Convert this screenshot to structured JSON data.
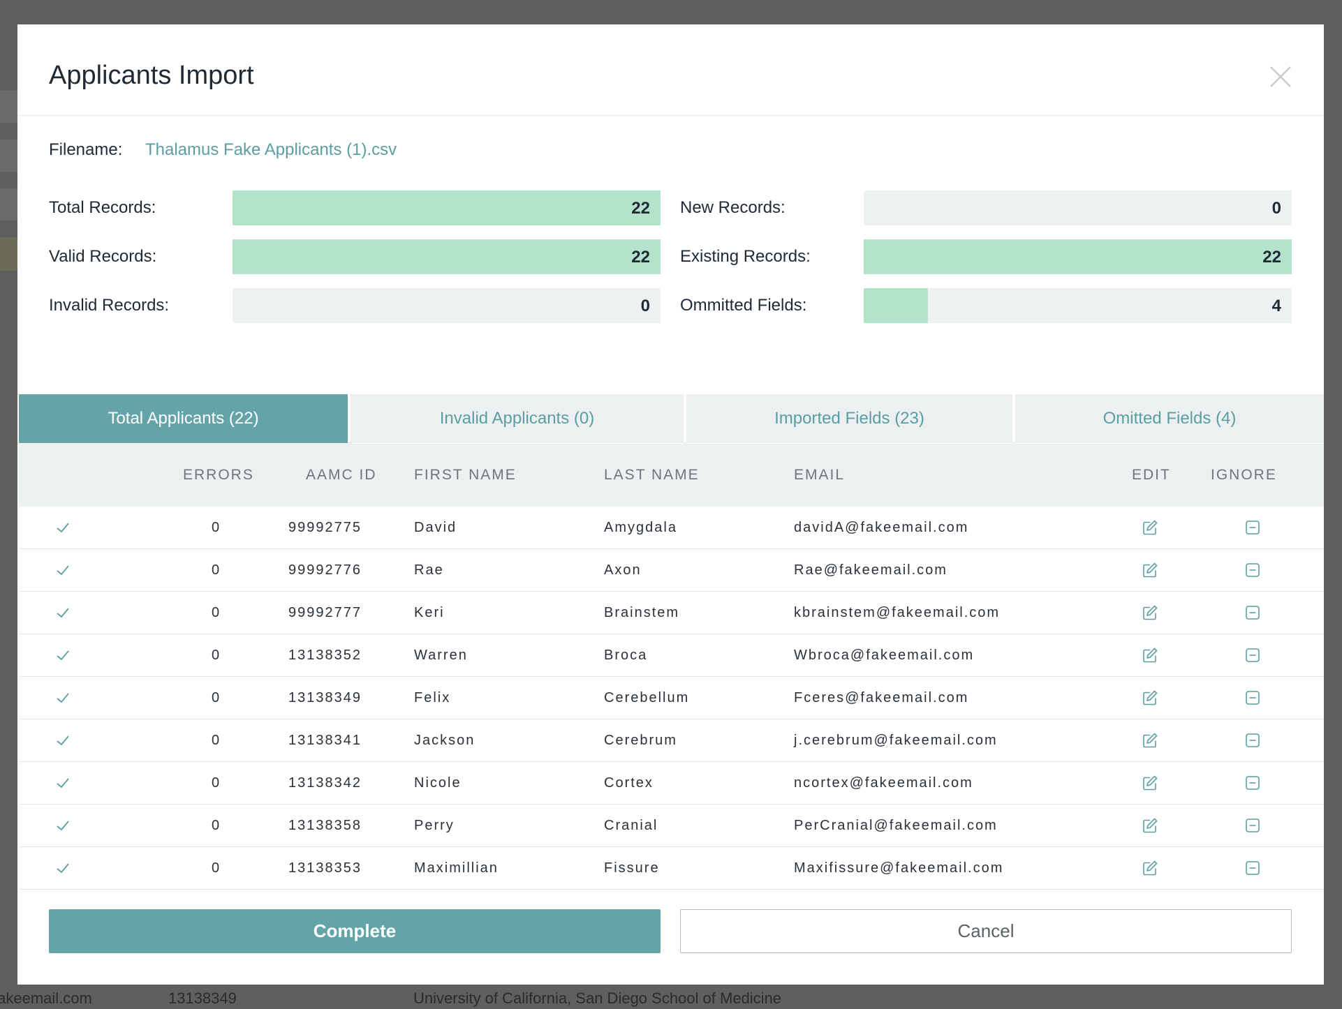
{
  "modal": {
    "title": "Applicants Import",
    "filename_label": "Filename:",
    "filename_value": "Thalamus Fake Applicants (1).csv"
  },
  "stats": [
    {
      "label": "Total Records:",
      "value": "22",
      "fill": 1.0
    },
    {
      "label": "Valid Records:",
      "value": "22",
      "fill": 1.0
    },
    {
      "label": "Invalid Records:",
      "value": "0",
      "fill": 0.0
    },
    {
      "label": "New Records:",
      "value": "0",
      "fill": 0.0
    },
    {
      "label": "Existing Records:",
      "value": "22",
      "fill": 1.0
    },
    {
      "label": "Ommitted Fields:",
      "value": "4",
      "fill": 0.15
    }
  ],
  "tabs": [
    {
      "label": "Total Applicants (22)",
      "active": true
    },
    {
      "label": "Invalid Applicants (0)",
      "active": false
    },
    {
      "label": "Imported Fields (23)",
      "active": false
    },
    {
      "label": "Omitted Fields (4)",
      "active": false
    }
  ],
  "table": {
    "headers": {
      "errors": "ERRORS",
      "aamc_id": "AAMC ID",
      "first_name": "FIRST NAME",
      "last_name": "LAST NAME",
      "email": "EMAIL",
      "edit": "EDIT",
      "ignore": "IGNORE"
    },
    "rows": [
      {
        "errors": "0",
        "aamc_id": "99992775",
        "first": "David",
        "last": "Amygdala",
        "email": "davidA@fakeemail.com"
      },
      {
        "errors": "0",
        "aamc_id": "99992776",
        "first": "Rae",
        "last": "Axon",
        "email": "Rae@fakeemail.com"
      },
      {
        "errors": "0",
        "aamc_id": "99992777",
        "first": "Keri",
        "last": "Brainstem",
        "email": "kbrainstem@fakeemail.com"
      },
      {
        "errors": "0",
        "aamc_id": "13138352",
        "first": "Warren",
        "last": "Broca",
        "email": "Wbroca@fakeemail.com"
      },
      {
        "errors": "0",
        "aamc_id": "13138349",
        "first": "Felix",
        "last": "Cerebellum",
        "email": "Fceres@fakeemail.com"
      },
      {
        "errors": "0",
        "aamc_id": "13138341",
        "first": "Jackson",
        "last": "Cerebrum",
        "email": "j.cerebrum@fakeemail.com"
      },
      {
        "errors": "0",
        "aamc_id": "13138342",
        "first": "Nicole",
        "last": "Cortex",
        "email": "ncortex@fakeemail.com"
      },
      {
        "errors": "0",
        "aamc_id": "13138358",
        "first": "Perry",
        "last": "Cranial",
        "email": "PerCranial@fakeemail.com"
      },
      {
        "errors": "0",
        "aamc_id": "13138353",
        "first": "Maximillian",
        "last": "Fissure",
        "email": "Maxifissure@fakeemail.com"
      }
    ]
  },
  "buttons": {
    "complete": "Complete",
    "cancel": "Cancel"
  },
  "background": {
    "email": "fakeemail.com",
    "id": "13138349",
    "school": "University of California, San Diego School of Medicine"
  },
  "colors": {
    "accent": "#64a4a8",
    "bar_fill": "#b3e3cb",
    "bar_track": "#edf1f1"
  }
}
